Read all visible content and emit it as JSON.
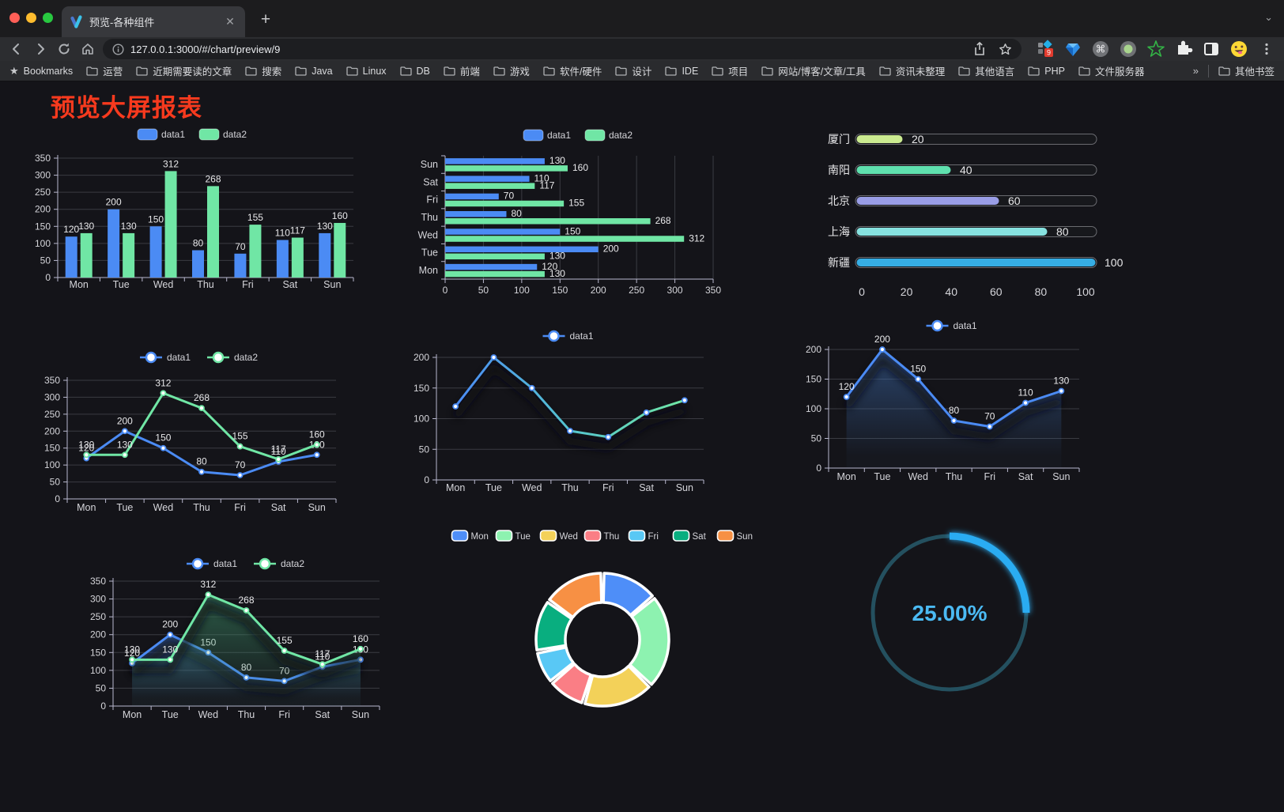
{
  "browser": {
    "tab_title": "预览-各种组件",
    "url": "127.0.0.1:3000/#/chart/preview/9",
    "bookmarks_label": "Bookmarks",
    "bookmarks": [
      "运营",
      "近期需要读的文章",
      "搜索",
      "Java",
      "Linux",
      "DB",
      "前端",
      "游戏",
      "软件/硬件",
      "设计",
      "IDE",
      "项目",
      "网站/博客/文章/工具",
      "资讯未整理",
      "其他语言",
      "PHP",
      "文件服务器"
    ],
    "overflow_chevron": "»",
    "other_bookmarks": "其他书签",
    "extension_badge": "9"
  },
  "page": {
    "title": "预览大屏报表",
    "title_color": "#f73a1e"
  },
  "chart_data": [
    {
      "id": "bar-vertical",
      "type": "bar",
      "categories": [
        "Mon",
        "Tue",
        "Wed",
        "Thu",
        "Fri",
        "Sat",
        "Sun"
      ],
      "series": [
        {
          "name": "data1",
          "color": "#4b8bf4",
          "values": [
            120,
            200,
            150,
            80,
            70,
            110,
            130
          ]
        },
        {
          "name": "data2",
          "color": "#70e6a5",
          "values": [
            130,
            130,
            312,
            268,
            155,
            117,
            160
          ]
        }
      ],
      "ylim": [
        0,
        350
      ],
      "yticks": [
        0,
        50,
        100,
        150,
        200,
        250,
        300,
        350
      ],
      "grid": true,
      "legend_position": "top"
    },
    {
      "id": "bar-horizontal",
      "type": "bar",
      "orientation": "horizontal",
      "categories_top_to_bottom": [
        "Sun",
        "Sat",
        "Fri",
        "Thu",
        "Wed",
        "Tue",
        "Mon"
      ],
      "categories": [
        "Mon",
        "Tue",
        "Wed",
        "Thu",
        "Fri",
        "Sat",
        "Sun"
      ],
      "series": [
        {
          "name": "data1",
          "color": "#4b8bf4",
          "values": [
            120,
            200,
            150,
            80,
            70,
            110,
            130
          ]
        },
        {
          "name": "data2",
          "color": "#70e6a5",
          "values": [
            130,
            130,
            312,
            268,
            155,
            117,
            160
          ]
        }
      ],
      "xlim": [
        0,
        350
      ],
      "xticks": [
        0,
        50,
        100,
        150,
        200,
        250,
        300,
        350
      ],
      "grid": true,
      "legend_position": "top"
    },
    {
      "id": "city-progress",
      "type": "bar",
      "orientation": "horizontal-progress",
      "items": [
        {
          "label": "厦门",
          "value": 20,
          "color": "#cbeb90"
        },
        {
          "label": "南阳",
          "value": 40,
          "color": "#5fe0ae"
        },
        {
          "label": "北京",
          "value": 60,
          "color": "#999de6"
        },
        {
          "label": "上海",
          "value": 80,
          "color": "#87e2e0"
        },
        {
          "label": "新疆",
          "value": 100,
          "color": "#36aee5"
        }
      ],
      "xlim": [
        0,
        100
      ],
      "xticks": [
        0,
        20,
        40,
        60,
        80,
        100
      ]
    },
    {
      "id": "line-two-series",
      "type": "line",
      "categories": [
        "Mon",
        "Tue",
        "Wed",
        "Thu",
        "Fri",
        "Sat",
        "Sun"
      ],
      "series": [
        {
          "name": "data1",
          "color": "#4b8bf4",
          "values": [
            120,
            200,
            150,
            80,
            70,
            110,
            130
          ]
        },
        {
          "name": "data2",
          "color": "#70e6a5",
          "values": [
            130,
            130,
            312,
            268,
            155,
            117,
            160
          ]
        }
      ],
      "ylim": [
        0,
        350
      ],
      "yticks": [
        0,
        50,
        100,
        150,
        200,
        250,
        300,
        350
      ],
      "labels": true,
      "legend_position": "top"
    },
    {
      "id": "line-gradient",
      "type": "line",
      "categories": [
        "Mon",
        "Tue",
        "Wed",
        "Thu",
        "Fri",
        "Sat",
        "Sun"
      ],
      "series": [
        {
          "name": "data1",
          "color": "#4b8bf4",
          "gradient": [
            "#4b8bf4",
            "#55c4cf",
            "#70e6a5"
          ],
          "values": [
            120,
            200,
            150,
            80,
            70,
            110,
            130
          ]
        }
      ],
      "ylim": [
        0,
        200
      ],
      "yticks": [
        0,
        50,
        100,
        150,
        200
      ],
      "labels": false,
      "shadow": true,
      "legend_position": "top"
    },
    {
      "id": "area-single",
      "type": "area",
      "categories": [
        "Mon",
        "Tue",
        "Wed",
        "Thu",
        "Fri",
        "Sat",
        "Sun"
      ],
      "series": [
        {
          "name": "data1",
          "color": "#4b8bf4",
          "area": "#3e6eb2",
          "values": [
            120,
            200,
            150,
            80,
            70,
            110,
            130
          ]
        }
      ],
      "ylim": [
        0,
        200
      ],
      "yticks": [
        0,
        50,
        100,
        150,
        200
      ],
      "labels": true,
      "shadow": true,
      "legend_position": "top"
    },
    {
      "id": "area-two-series",
      "type": "area",
      "categories": [
        "Mon",
        "Tue",
        "Wed",
        "Thu",
        "Fri",
        "Sat",
        "Sun"
      ],
      "series": [
        {
          "name": "data1",
          "color": "#4b8bf4",
          "area": "#3e6eb2",
          "values": [
            120,
            200,
            150,
            80,
            70,
            110,
            130
          ]
        },
        {
          "name": "data2",
          "color": "#70e6a5",
          "area": "#40966e",
          "values": [
            130,
            130,
            312,
            268,
            155,
            117,
            160
          ]
        }
      ],
      "ylim": [
        0,
        350
      ],
      "yticks": [
        0,
        50,
        100,
        150,
        200,
        250,
        300,
        350
      ],
      "labels": true,
      "shadow": true,
      "legend_position": "top"
    },
    {
      "id": "donut",
      "type": "pie",
      "categories": [
        "Mon",
        "Tue",
        "Wed",
        "Thu",
        "Fri",
        "Sat",
        "Sun"
      ],
      "values": [
        120,
        200,
        150,
        80,
        70,
        110,
        130
      ],
      "colors": [
        "#4e8ef8",
        "#8df2b0",
        "#f3d159",
        "#fa7e85",
        "#59c8f5",
        "#09ae7f",
        "#f79044"
      ],
      "inner_radius_ratio": 0.56,
      "border_color": "#ffffff",
      "legend_position": "top"
    },
    {
      "id": "gauge",
      "type": "gauge",
      "value": 25,
      "label": "25.00%",
      "color": "#29acf2",
      "track_color": "#24505f",
      "text_color": "#4bbaf3"
    }
  ]
}
